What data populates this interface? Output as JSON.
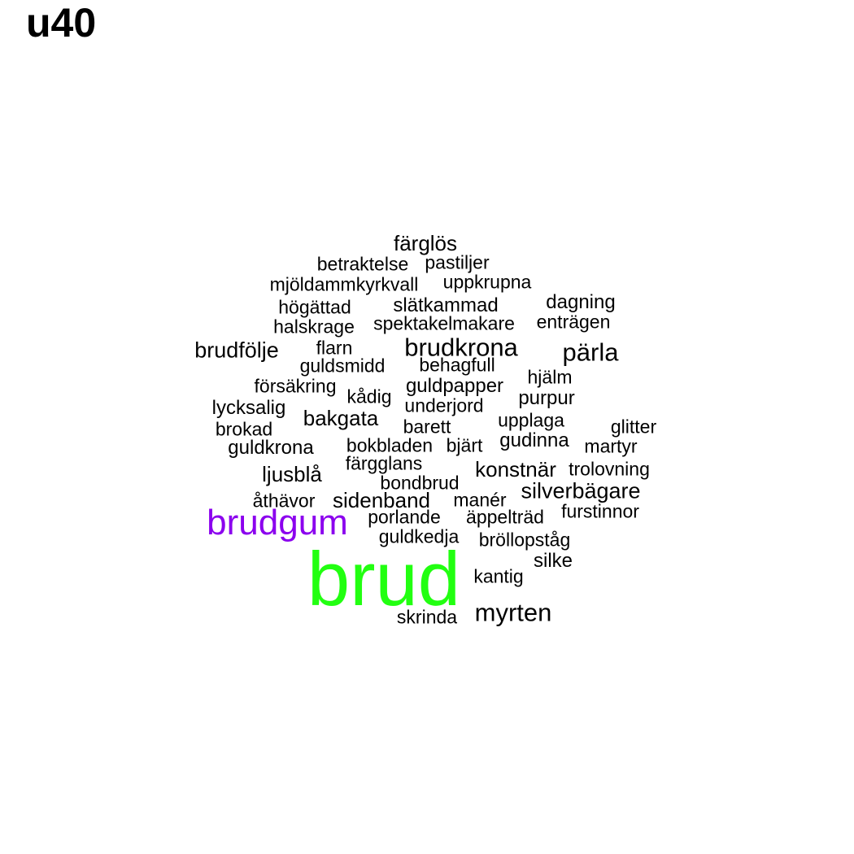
{
  "title": "u40",
  "colors": {
    "default": "#000000",
    "brud": "#22ff11",
    "brudgum": "#8b00ee"
  },
  "words": [
    {
      "text": "brud",
      "color": "brud"
    },
    {
      "text": "brudgum",
      "color": "brudgum"
    },
    {
      "text": "brudkrona"
    },
    {
      "text": "pärla"
    },
    {
      "text": "myrten"
    },
    {
      "text": "brudfölje"
    },
    {
      "text": "silverbägare"
    },
    {
      "text": "konstnär"
    },
    {
      "text": "ljusblå"
    },
    {
      "text": "sidenband"
    },
    {
      "text": "bakgata"
    },
    {
      "text": "färglös"
    },
    {
      "text": "guldkrona"
    },
    {
      "text": "silke"
    },
    {
      "text": "dagning"
    },
    {
      "text": "guldpapper"
    },
    {
      "text": "purpur"
    },
    {
      "text": "gudinna"
    },
    {
      "text": "slätkammad"
    },
    {
      "text": "mjöldammkyrkvall"
    },
    {
      "text": "lycksalig"
    },
    {
      "text": "betraktelse"
    },
    {
      "text": "pastiljer"
    },
    {
      "text": "uppkrupna"
    },
    {
      "text": "högättad"
    },
    {
      "text": "halskrage"
    },
    {
      "text": "spektakelmakare"
    },
    {
      "text": "enträgen"
    },
    {
      "text": "flarn"
    },
    {
      "text": "guldsmidd"
    },
    {
      "text": "behagfull"
    },
    {
      "text": "hjälm"
    },
    {
      "text": "försäkring"
    },
    {
      "text": "kådig"
    },
    {
      "text": "underjord"
    },
    {
      "text": "brokad"
    },
    {
      "text": "barett"
    },
    {
      "text": "upplaga"
    },
    {
      "text": "glitter"
    },
    {
      "text": "bokbladen"
    },
    {
      "text": "bjärt"
    },
    {
      "text": "martyr"
    },
    {
      "text": "färgglans"
    },
    {
      "text": "trolovning"
    },
    {
      "text": "bondbrud"
    },
    {
      "text": "åthävor"
    },
    {
      "text": "manér"
    },
    {
      "text": "porlande"
    },
    {
      "text": "äppelträd"
    },
    {
      "text": "furstinnor"
    },
    {
      "text": "guldkedja"
    },
    {
      "text": "bröllopståg"
    },
    {
      "text": "kantig"
    },
    {
      "text": "skrinda"
    }
  ]
}
